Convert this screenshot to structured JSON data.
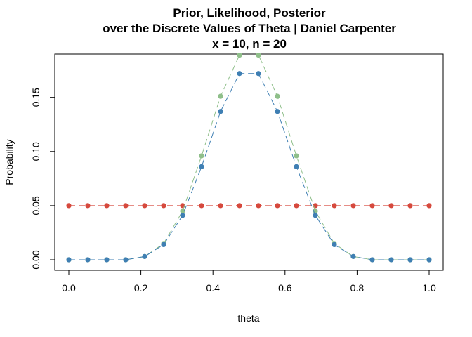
{
  "chart_data": {
    "type": "line",
    "title_lines": [
      "Prior, Likelihood, Posterior",
      "over the Discrete Values of Theta | Daniel Carpenter",
      "x = 10, n = 20"
    ],
    "xlabel": "theta",
    "ylabel": "Probability",
    "xlim": [
      0.0,
      1.0
    ],
    "ylim": [
      0.0,
      0.19
    ],
    "xticks": [
      "0.0",
      "0.2",
      "0.4",
      "0.6",
      "0.8",
      "1.0"
    ],
    "yticks": [
      "0.00",
      "0.05",
      "0.10",
      "0.15"
    ],
    "x": [
      0.0,
      0.0526,
      0.1053,
      0.1579,
      0.2105,
      0.2632,
      0.3158,
      0.3684,
      0.4211,
      0.4737,
      0.5263,
      0.5789,
      0.6316,
      0.6842,
      0.7368,
      0.7895,
      0.8421,
      0.8947,
      0.9474,
      1.0
    ],
    "series": [
      {
        "color": "#d6493d",
        "values": [
          0.05,
          0.05,
          0.05,
          0.05,
          0.05,
          0.05,
          0.05,
          0.05,
          0.05,
          0.05,
          0.05,
          0.05,
          0.05,
          0.05,
          0.05,
          0.05,
          0.05,
          0.05,
          0.05,
          0.05
        ]
      },
      {
        "color": "#8fbf8a",
        "values": [
          0.0,
          0.0,
          0.0,
          0.0,
          0.003,
          0.015,
          0.045,
          0.096,
          0.151,
          0.189,
          0.189,
          0.151,
          0.096,
          0.045,
          0.015,
          0.003,
          0.0,
          0.0,
          0.0,
          0.0
        ]
      },
      {
        "color": "#3f7fb3",
        "values": [
          0.0,
          0.0,
          0.0,
          0.0,
          0.003,
          0.014,
          0.041,
          0.086,
          0.137,
          0.172,
          0.172,
          0.137,
          0.086,
          0.041,
          0.014,
          0.003,
          0.0,
          0.0,
          0.0,
          0.0
        ]
      }
    ],
    "grid": false
  }
}
